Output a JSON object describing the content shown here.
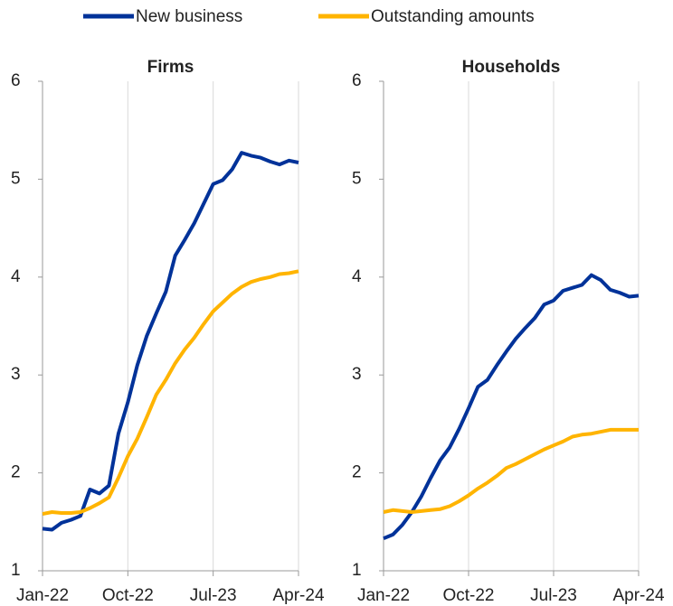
{
  "chart_data": [
    {
      "type": "line",
      "title": "Firms",
      "categories": [
        "Jan-22",
        null,
        null,
        null,
        null,
        null,
        null,
        null,
        null,
        "Oct-22",
        null,
        null,
        null,
        null,
        null,
        null,
        null,
        null,
        "Jul-23",
        null,
        null,
        null,
        null,
        null,
        null,
        null,
        null,
        "Apr-24"
      ],
      "series": [
        {
          "name": "New business",
          "color": "#003299",
          "values": [
            1.43,
            1.42,
            1.49,
            1.52,
            1.56,
            1.83,
            1.79,
            1.87,
            2.4,
            2.72,
            3.1,
            3.4,
            3.63,
            3.85,
            4.22,
            4.38,
            4.55,
            4.75,
            4.95,
            4.99,
            5.1,
            5.27,
            5.24,
            5.22,
            5.18,
            5.15,
            5.19,
            5.17
          ]
        },
        {
          "name": "Outstanding amounts",
          "color": "#ffb400",
          "values": [
            1.58,
            1.6,
            1.59,
            1.59,
            1.6,
            1.64,
            1.69,
            1.75,
            1.95,
            2.17,
            2.35,
            2.57,
            2.8,
            2.95,
            3.12,
            3.26,
            3.38,
            3.52,
            3.65,
            3.74,
            3.83,
            3.9,
            3.95,
            3.98,
            4.0,
            4.03,
            4.04,
            4.06
          ]
        }
      ],
      "ylim": [
        1,
        6
      ],
      "yticks": [
        1,
        2,
        3,
        4,
        5,
        6
      ],
      "grid": true
    },
    {
      "type": "line",
      "title": "Households",
      "categories": [
        "Jan-22",
        null,
        null,
        null,
        null,
        null,
        null,
        null,
        null,
        "Oct-22",
        null,
        null,
        null,
        null,
        null,
        null,
        null,
        null,
        "Jul-23",
        null,
        null,
        null,
        null,
        null,
        null,
        null,
        null,
        "Apr-24"
      ],
      "series": [
        {
          "name": "New business",
          "color": "#003299",
          "values": [
            1.33,
            1.37,
            1.47,
            1.6,
            1.76,
            1.95,
            2.13,
            2.26,
            2.45,
            2.66,
            2.88,
            2.95,
            3.1,
            3.24,
            3.37,
            3.48,
            3.58,
            3.72,
            3.76,
            3.86,
            3.89,
            3.92,
            4.02,
            3.97,
            3.87,
            3.84,
            3.8,
            3.81
          ]
        },
        {
          "name": "Outstanding amounts",
          "color": "#ffb400",
          "values": [
            1.6,
            1.62,
            1.61,
            1.6,
            1.61,
            1.62,
            1.63,
            1.66,
            1.71,
            1.77,
            1.84,
            1.9,
            1.97,
            2.05,
            2.09,
            2.14,
            2.19,
            2.24,
            2.28,
            2.32,
            2.37,
            2.39,
            2.4,
            2.42,
            2.44,
            2.44,
            2.44,
            2.44
          ]
        }
      ],
      "ylim": [
        1,
        6
      ],
      "yticks": [
        1,
        2,
        3,
        4,
        5,
        6
      ],
      "grid": true
    }
  ]
}
